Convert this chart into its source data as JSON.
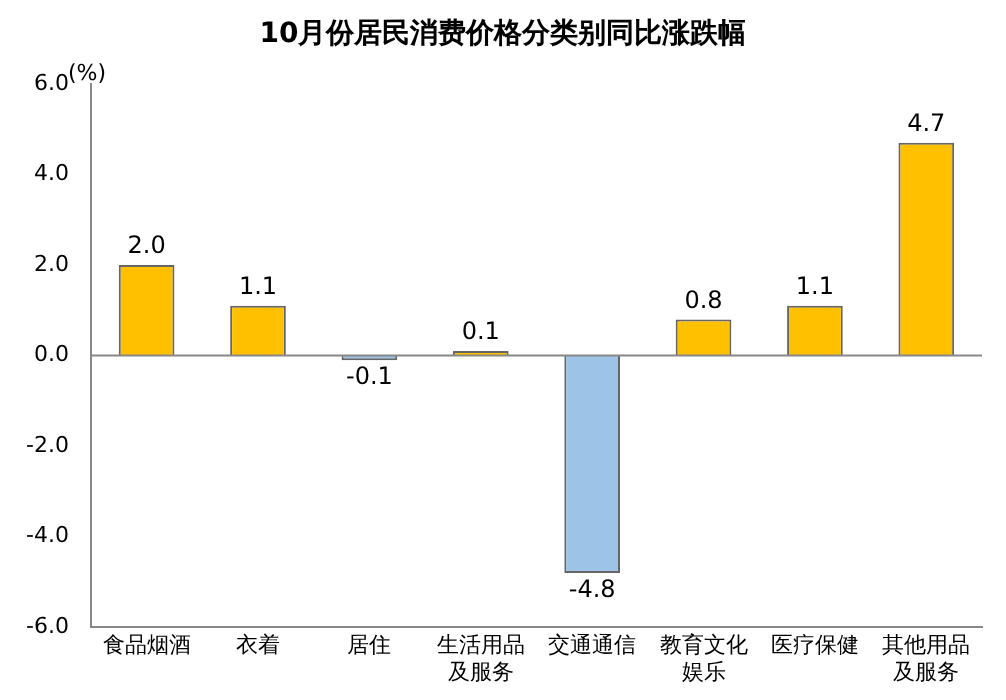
{
  "chart_data": {
    "type": "bar",
    "title": "10月份居民消费价格分类别同比涨跌幅",
    "ylabel": "(%)",
    "categories": [
      "食品烟酒",
      "衣着",
      "居住",
      "生活用品及服务",
      "交通通信",
      "教育文化娱乐",
      "医疗保健",
      "其他用品及服务"
    ],
    "values": [
      2.0,
      1.1,
      -0.1,
      0.1,
      -4.8,
      0.8,
      1.1,
      4.7
    ],
    "value_labels": [
      "2.0",
      "1.1",
      "-0.1",
      "0.1",
      "-4.8",
      "0.8",
      "1.1",
      "4.7"
    ],
    "ref_lines": [
      {
        "axis": "y",
        "value": 0
      }
    ],
    "colors": [
      "#ffc000",
      "#ffc000",
      "#9dc3e6",
      "#ffc000",
      "#9dc3e6",
      "#ffc000",
      "#ffc000",
      "#ffc000"
    ],
    "ylim": [
      -6,
      6
    ],
    "yticks": [
      {
        "value": -6,
        "label": "-6.0"
      },
      {
        "value": -4,
        "label": "-4.0"
      },
      {
        "value": -2,
        "label": "-2.0"
      },
      {
        "value": 0,
        "label": "0.0"
      },
      {
        "value": 2,
        "label": "2.0"
      },
      {
        "value": 4,
        "label": "4.0"
      },
      {
        "value": 6,
        "label": "6.0"
      }
    ],
    "grid": false,
    "legend": false
  }
}
